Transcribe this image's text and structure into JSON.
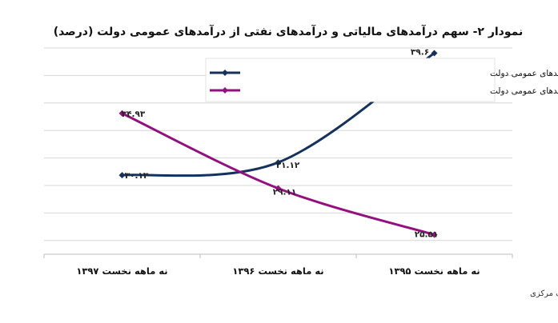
{
  "chart_data": {
    "type": "line",
    "title": "نمودار ۲- سهم درآمدهای مالیاتی و درآمدهای نفتی از درآمدهای عمومی دولت (درصد)",
    "categories": [
      "نه ماهه نخست ۱۳۹۵",
      "نه ماهه نخست ۱۳۹۶",
      "نه ماهه نخست ۱۳۹۷"
    ],
    "series": [
      {
        "name": "سهم درآمدهای مالیاتی از درآمدهای عمومی دولت",
        "values": [
          39.6,
          31.12,
          30.13
        ],
        "labels": [
          "۳۹.۶",
          "۳۱.۱۲",
          "۳۰.۱۳"
        ],
        "color": "#16325c"
      },
      {
        "name": "سهم درآمدهای حاصل از نفت و فرآورده های نفتی از درآمدهای عمومی دولت",
        "values": [
          25.51,
          29.11,
          34.93
        ],
        "labels": [
          "۲۵.۵۱",
          "۲۹.۱۱",
          "۳۴.۹۳"
        ],
        "color": "#93117e"
      }
    ],
    "ylim": [
      24,
      40
    ],
    "grid": true,
    "legend_position": "top-right",
    "source": "منبع داده‌ها: بانک مرکزی"
  }
}
